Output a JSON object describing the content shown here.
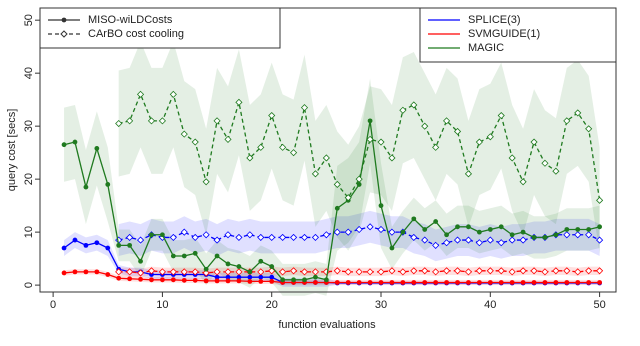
{
  "chart_data": {
    "type": "line",
    "xlabel": "function evaluations",
    "ylabel": "query cost [secs]",
    "x": [
      1,
      2,
      3,
      4,
      5,
      6,
      7,
      8,
      9,
      10,
      11,
      12,
      13,
      14,
      15,
      16,
      17,
      18,
      19,
      20,
      21,
      22,
      23,
      24,
      25,
      26,
      27,
      28,
      29,
      30,
      31,
      32,
      33,
      34,
      35,
      36,
      37,
      38,
      39,
      40,
      41,
      42,
      43,
      44,
      45,
      46,
      47,
      48,
      49,
      50
    ],
    "xlim": [
      -1.2,
      51.5
    ],
    "ylim": [
      -1.3,
      52.3
    ],
    "xticks": [
      0,
      10,
      20,
      30,
      40,
      50
    ],
    "yticks": [
      0,
      10,
      20,
      30,
      40,
      50
    ],
    "method_legend": "top-left",
    "dataset_legend": "top-right",
    "methods": [
      {
        "name": "MISO-wiLDCosts",
        "dash": "solid",
        "marker": "dot"
      },
      {
        "name": "CArBO cost cooling",
        "dash": "dashed",
        "marker": "diamond"
      }
    ],
    "datasets": [
      {
        "name": "SPLICE(3)",
        "color": "#0000ff",
        "series": [
          {
            "values": [
              7,
              8.5,
              7.5,
              8,
              7,
              3,
              2.5,
              2.5,
              2,
              2,
              2,
              2,
              2,
              2,
              1.5,
              1.5,
              1.5,
              1.5,
              1.5,
              1.5,
              0.5,
              0.5,
              0.5,
              0.5,
              0.5,
              0.4,
              0.4,
              0.4,
              0.4,
              0.4,
              0.4,
              0.4,
              0.4,
              0.4,
              0.4,
              0.4,
              0.4,
              0.4,
              0.4,
              0.4,
              0.4,
              0.4,
              0.4,
              0.4,
              0.4,
              0.4,
              0.4,
              0.4,
              0.4,
              0.4
            ],
            "errors": [
              1.5,
              1.5,
              1.5,
              1.5,
              1.5,
              0.8,
              0.8,
              0.8,
              0.8,
              0.8,
              0.8,
              0.8,
              0.8,
              0.8,
              0.8,
              0.8,
              0.8,
              0.8,
              0.8,
              0.8,
              0.8,
              0.8,
              0.8,
              0.8,
              0.8,
              0.3,
              0.3,
              0.3,
              0.3,
              0.3,
              0.3,
              0.3,
              0.3,
              0.3,
              0.3,
              0.3,
              0.3,
              0.3,
              0.3,
              0.3,
              0.3,
              0.3,
              0.3,
              0.3,
              0.3,
              0.3,
              0.3,
              0.3,
              0.3,
              0.3
            ]
          },
          {
            "values": [
              null,
              null,
              null,
              null,
              null,
              8.5,
              9,
              8.5,
              9.5,
              9,
              9,
              10,
              9,
              9.5,
              8.5,
              9.5,
              9,
              9.5,
              9,
              9,
              9,
              9,
              9,
              9,
              9.5,
              10,
              10,
              10.5,
              11,
              10.5,
              10,
              10,
              9,
              8.5,
              7.5,
              8,
              8.5,
              8.5,
              8,
              8.5,
              8,
              8.5,
              8.5,
              9,
              9,
              9.5,
              9.5,
              9.5,
              9.5,
              8.5
            ],
            "errors": [
              null,
              null,
              null,
              null,
              null,
              3,
              3,
              3,
              3,
              3,
              3,
              3,
              3,
              3,
              3,
              3,
              3,
              3,
              3,
              3,
              3,
              3,
              3,
              3,
              3,
              3,
              3,
              3,
              3,
              3,
              3,
              3,
              3,
              3,
              3,
              3,
              3,
              3,
              3,
              3,
              3,
              3,
              3,
              3,
              3,
              3,
              3,
              3,
              3,
              3
            ]
          }
        ]
      },
      {
        "name": "SVMGUIDE(1)",
        "color": "#ff0000",
        "series": [
          {
            "values": [
              2.3,
              2.5,
              2.5,
              2.5,
              2,
              1.3,
              1.2,
              1.1,
              1,
              1,
              1,
              0.9,
              0.9,
              0.8,
              0.8,
              0.8,
              0.8,
              0.7,
              0.7,
              0.7,
              0.5,
              0.5,
              0.5,
              0.5,
              0.5,
              0.5,
              0.5,
              0.5,
              0.5,
              0.5,
              0.5,
              0.5,
              0.5,
              0.5,
              0.5,
              0.5,
              0.5,
              0.5,
              0.5,
              0.5,
              0.5,
              0.5,
              0.5,
              0.5,
              0.5,
              0.5,
              0.5,
              0.5,
              0.5,
              0.5
            ],
            "errors": [
              0.5,
              0.5,
              0.5,
              0.5,
              0.5,
              0.5,
              0.5,
              0.5,
              0.5,
              0.5,
              0.5,
              0.5,
              0.5,
              0.5,
              0.5,
              0.5,
              0.5,
              0.5,
              0.5,
              0.5,
              0.5,
              0.5,
              0.5,
              0.5,
              0.5,
              0.5,
              0.5,
              0.5,
              0.5,
              0.5,
              0.5,
              0.5,
              0.5,
              0.5,
              0.5,
              0.5,
              0.5,
              0.5,
              0.5,
              0.5,
              0.5,
              0.5,
              0.5,
              0.5,
              0.5,
              0.5,
              0.5,
              0.5,
              0.5,
              0.5
            ]
          },
          {
            "values": [
              null,
              null,
              null,
              null,
              null,
              2.5,
              2.5,
              2.3,
              2.7,
              2.5,
              2.5,
              2.5,
              2.5,
              2.3,
              2.5,
              2.5,
              2.5,
              2.5,
              2.5,
              2.7,
              2.5,
              2.7,
              2.5,
              2.5,
              2.5,
              2.7,
              2.5,
              2.5,
              2.5,
              2.5,
              2.7,
              2.5,
              2.7,
              2.7,
              2.5,
              2.7,
              2.7,
              2.5,
              2.7,
              2.7,
              2.7,
              2.5,
              2.7,
              2.7,
              2.5,
              2.7,
              2.7,
              2.5,
              2.7,
              2.7
            ],
            "errors": [
              null,
              null,
              null,
              null,
              null,
              0.8,
              0.8,
              0.8,
              0.8,
              0.8,
              0.8,
              0.8,
              0.8,
              0.8,
              0.8,
              0.8,
              0.8,
              0.8,
              0.8,
              0.8,
              0.8,
              0.8,
              0.8,
              0.8,
              0.8,
              0.8,
              0.8,
              0.8,
              0.8,
              0.8,
              0.8,
              0.8,
              0.8,
              0.8,
              0.8,
              0.8,
              0.8,
              0.8,
              0.8,
              0.8,
              0.8,
              0.8,
              0.8,
              0.8,
              0.8,
              0.8,
              0.8,
              0.8,
              0.8,
              0.8
            ]
          }
        ]
      },
      {
        "name": "MAGIC",
        "color": "#1f7a1f",
        "series": [
          {
            "values": [
              26.5,
              27,
              18.5,
              25.8,
              19,
              7.5,
              7.5,
              4.5,
              9.5,
              9.5,
              5.5,
              5.5,
              6,
              3,
              5.5,
              4,
              3.5,
              2.5,
              4.5,
              3.5,
              1,
              1,
              1,
              1.5,
              1,
              14.5,
              16,
              19,
              31,
              15,
              7,
              10,
              12.5,
              10.5,
              12,
              9.5,
              11,
              11,
              10,
              10.5,
              11,
              9.5,
              10,
              9,
              9,
              9.5,
              10.5,
              10.5,
              10.5,
              11
            ],
            "errors": [
              7,
              7,
              7,
              7,
              7,
              3,
              3,
              3,
              3,
              3,
              3,
              3,
              3,
              3,
              3,
              3,
              3,
              3,
              3,
              3,
              3,
              3,
              3,
              3,
              3,
              8,
              8,
              8,
              8,
              8,
              4,
              4,
              4,
              4,
              4,
              4,
              4,
              4,
              4,
              4,
              4,
              4,
              4,
              4,
              4,
              4,
              4,
              4,
              4,
              4
            ]
          },
          {
            "values": [
              null,
              null,
              null,
              null,
              null,
              30.5,
              31,
              36,
              31,
              31,
              36,
              28.5,
              27,
              19.5,
              31,
              27.5,
              34.5,
              24,
              26,
              32,
              26,
              25,
              33.5,
              21,
              24,
              19,
              16.5,
              20,
              27.5,
              27,
              24,
              33,
              34,
              30,
              26,
              31,
              29,
              21,
              27,
              28,
              32,
              24,
              19.5,
              27,
              23,
              21.5,
              31,
              32.5,
              29.5,
              16
            ],
            "errors": [
              null,
              null,
              null,
              null,
              null,
              10,
              10,
              10,
              10,
              10,
              10,
              10,
              10,
              10,
              10,
              10,
              10,
              10,
              10,
              10,
              10,
              10,
              10,
              10,
              10,
              10,
              10,
              10,
              10,
              10,
              10,
              10,
              10,
              10,
              10,
              10,
              10,
              10,
              10,
              10,
              10,
              10,
              10,
              10,
              10,
              10,
              10,
              10,
              10,
              10
            ]
          }
        ]
      }
    ]
  }
}
